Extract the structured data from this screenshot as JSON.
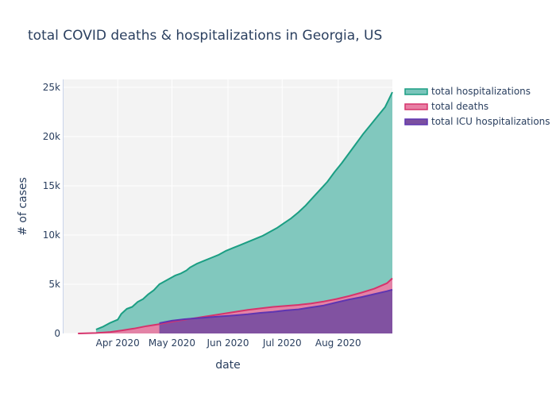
{
  "chart_data": {
    "type": "area",
    "title": "total COVID deaths & hospitalizations in Georgia, US",
    "xlabel": "date",
    "ylabel": "# of cases",
    "x_ticks": [
      "Apr 2020",
      "May 2020",
      "Jun 2020",
      "Jul 2020",
      "Aug 2020"
    ],
    "y_ticks": [
      "0",
      "5k",
      "10k",
      "15k",
      "20k",
      "25k"
    ],
    "xlim": [
      "2020-03-02",
      "2020-08-31"
    ],
    "ylim": [
      0,
      25800
    ],
    "grid": true,
    "legend_position": "top-right",
    "series": [
      {
        "name": "total hospitalizations",
        "color": "#1b9e83",
        "fill": "#7ac5bb",
        "points": [
          [
            "2020-03-20",
            400
          ],
          [
            "2020-03-24",
            700
          ],
          [
            "2020-03-28",
            1100
          ],
          [
            "2020-04-01",
            1400
          ],
          [
            "2020-04-03",
            2000
          ],
          [
            "2020-04-06",
            2500
          ],
          [
            "2020-04-09",
            2700
          ],
          [
            "2020-04-12",
            3200
          ],
          [
            "2020-04-15",
            3500
          ],
          [
            "2020-04-18",
            4000
          ],
          [
            "2020-04-21",
            4400
          ],
          [
            "2020-04-24",
            5000
          ],
          [
            "2020-04-27",
            5300
          ],
          [
            "2020-04-30",
            5600
          ],
          [
            "2020-05-03",
            5900
          ],
          [
            "2020-05-06",
            6100
          ],
          [
            "2020-05-09",
            6400
          ],
          [
            "2020-05-11",
            6700
          ],
          [
            "2020-05-15",
            7100
          ],
          [
            "2020-05-19",
            7400
          ],
          [
            "2020-05-23",
            7700
          ],
          [
            "2020-05-27",
            8000
          ],
          [
            "2020-05-31",
            8400
          ],
          [
            "2020-06-04",
            8700
          ],
          [
            "2020-06-08",
            9000
          ],
          [
            "2020-06-12",
            9300
          ],
          [
            "2020-06-16",
            9600
          ],
          [
            "2020-06-20",
            9900
          ],
          [
            "2020-06-24",
            10300
          ],
          [
            "2020-06-28",
            10700
          ],
          [
            "2020-07-02",
            11200
          ],
          [
            "2020-07-06",
            11700
          ],
          [
            "2020-07-10",
            12300
          ],
          [
            "2020-07-14",
            13000
          ],
          [
            "2020-07-18",
            13800
          ],
          [
            "2020-07-22",
            14600
          ],
          [
            "2020-07-26",
            15400
          ],
          [
            "2020-07-30",
            16400
          ],
          [
            "2020-08-03",
            17300
          ],
          [
            "2020-08-07",
            18300
          ],
          [
            "2020-08-11",
            19300
          ],
          [
            "2020-08-15",
            20300
          ],
          [
            "2020-08-19",
            21200
          ],
          [
            "2020-08-23",
            22100
          ],
          [
            "2020-08-27",
            23000
          ],
          [
            "2020-08-31",
            24500
          ]
        ]
      },
      {
        "name": "total deaths",
        "color": "#d6336c",
        "fill": "#e87fa4",
        "points": [
          [
            "2020-03-10",
            0
          ],
          [
            "2020-03-20",
            50
          ],
          [
            "2020-03-28",
            150
          ],
          [
            "2020-04-03",
            300
          ],
          [
            "2020-04-10",
            500
          ],
          [
            "2020-04-17",
            750
          ],
          [
            "2020-04-24",
            950
          ],
          [
            "2020-05-01",
            1200
          ],
          [
            "2020-05-08",
            1400
          ],
          [
            "2020-05-15",
            1600
          ],
          [
            "2020-05-22",
            1800
          ],
          [
            "2020-05-29",
            2000
          ],
          [
            "2020-06-05",
            2200
          ],
          [
            "2020-06-12",
            2400
          ],
          [
            "2020-06-19",
            2550
          ],
          [
            "2020-06-26",
            2700
          ],
          [
            "2020-07-03",
            2800
          ],
          [
            "2020-07-10",
            2900
          ],
          [
            "2020-07-17",
            3050
          ],
          [
            "2020-07-24",
            3250
          ],
          [
            "2020-07-31",
            3500
          ],
          [
            "2020-08-07",
            3800
          ],
          [
            "2020-08-14",
            4150
          ],
          [
            "2020-08-21",
            4550
          ],
          [
            "2020-08-28",
            5100
          ],
          [
            "2020-08-31",
            5600
          ]
        ]
      },
      {
        "name": "total ICU hospitalizations",
        "color": "#5e35b1",
        "fill": "#7b4fa0",
        "points": [
          [
            "2020-04-24",
            1050
          ],
          [
            "2020-05-01",
            1300
          ],
          [
            "2020-05-08",
            1450
          ],
          [
            "2020-05-15",
            1550
          ],
          [
            "2020-05-22",
            1650
          ],
          [
            "2020-05-29",
            1750
          ],
          [
            "2020-06-05",
            1850
          ],
          [
            "2020-06-12",
            1950
          ],
          [
            "2020-06-19",
            2100
          ],
          [
            "2020-06-26",
            2200
          ],
          [
            "2020-07-03",
            2350
          ],
          [
            "2020-07-10",
            2450
          ],
          [
            "2020-07-17",
            2650
          ],
          [
            "2020-07-24",
            2850
          ],
          [
            "2020-07-31",
            3150
          ],
          [
            "2020-08-07",
            3450
          ],
          [
            "2020-08-14",
            3700
          ],
          [
            "2020-08-21",
            4000
          ],
          [
            "2020-08-28",
            4300
          ],
          [
            "2020-08-31",
            4450
          ]
        ]
      }
    ]
  }
}
